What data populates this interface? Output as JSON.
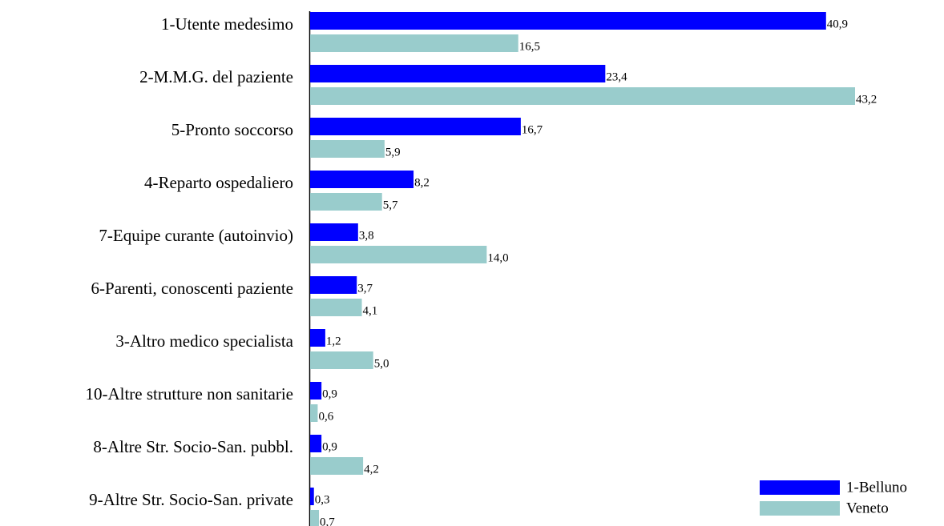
{
  "chart_data": {
    "type": "bar",
    "orientation": "horizontal",
    "categories": [
      "1-Utente medesimo",
      "2-M.M.G. del paziente",
      "5-Pronto soccorso",
      "4-Reparto ospedaliero",
      "7-Equipe curante (autoinvio)",
      "6-Parenti, conoscenti paziente",
      "3-Altro medico specialista",
      "10-Altre strutture non sanitarie",
      "8-Altre Str. Socio-San. pubbl.",
      "9-Altre Str. Socio-San. private"
    ],
    "series": [
      {
        "name": "1-Belluno",
        "color": "#0000ff",
        "values": [
          40.9,
          23.4,
          16.7,
          8.2,
          3.8,
          3.7,
          1.2,
          0.9,
          0.9,
          0.3
        ],
        "value_labels": [
          "40,9",
          "23,4",
          "16,7",
          "8,2",
          "3,8",
          "3,7",
          "1,2",
          "0,9",
          "0,9",
          "0,3"
        ]
      },
      {
        "name": "Veneto",
        "color": "#99cccc",
        "values": [
          16.5,
          43.2,
          5.9,
          5.7,
          14.0,
          4.1,
          5.0,
          0.6,
          4.2,
          0.7
        ],
        "value_labels": [
          "16,5",
          "43,2",
          "5,9",
          "5,7",
          "14,0",
          "4,1",
          "5,0",
          "0,6",
          "4,2",
          "0,7"
        ]
      }
    ],
    "legend": "lower right"
  }
}
